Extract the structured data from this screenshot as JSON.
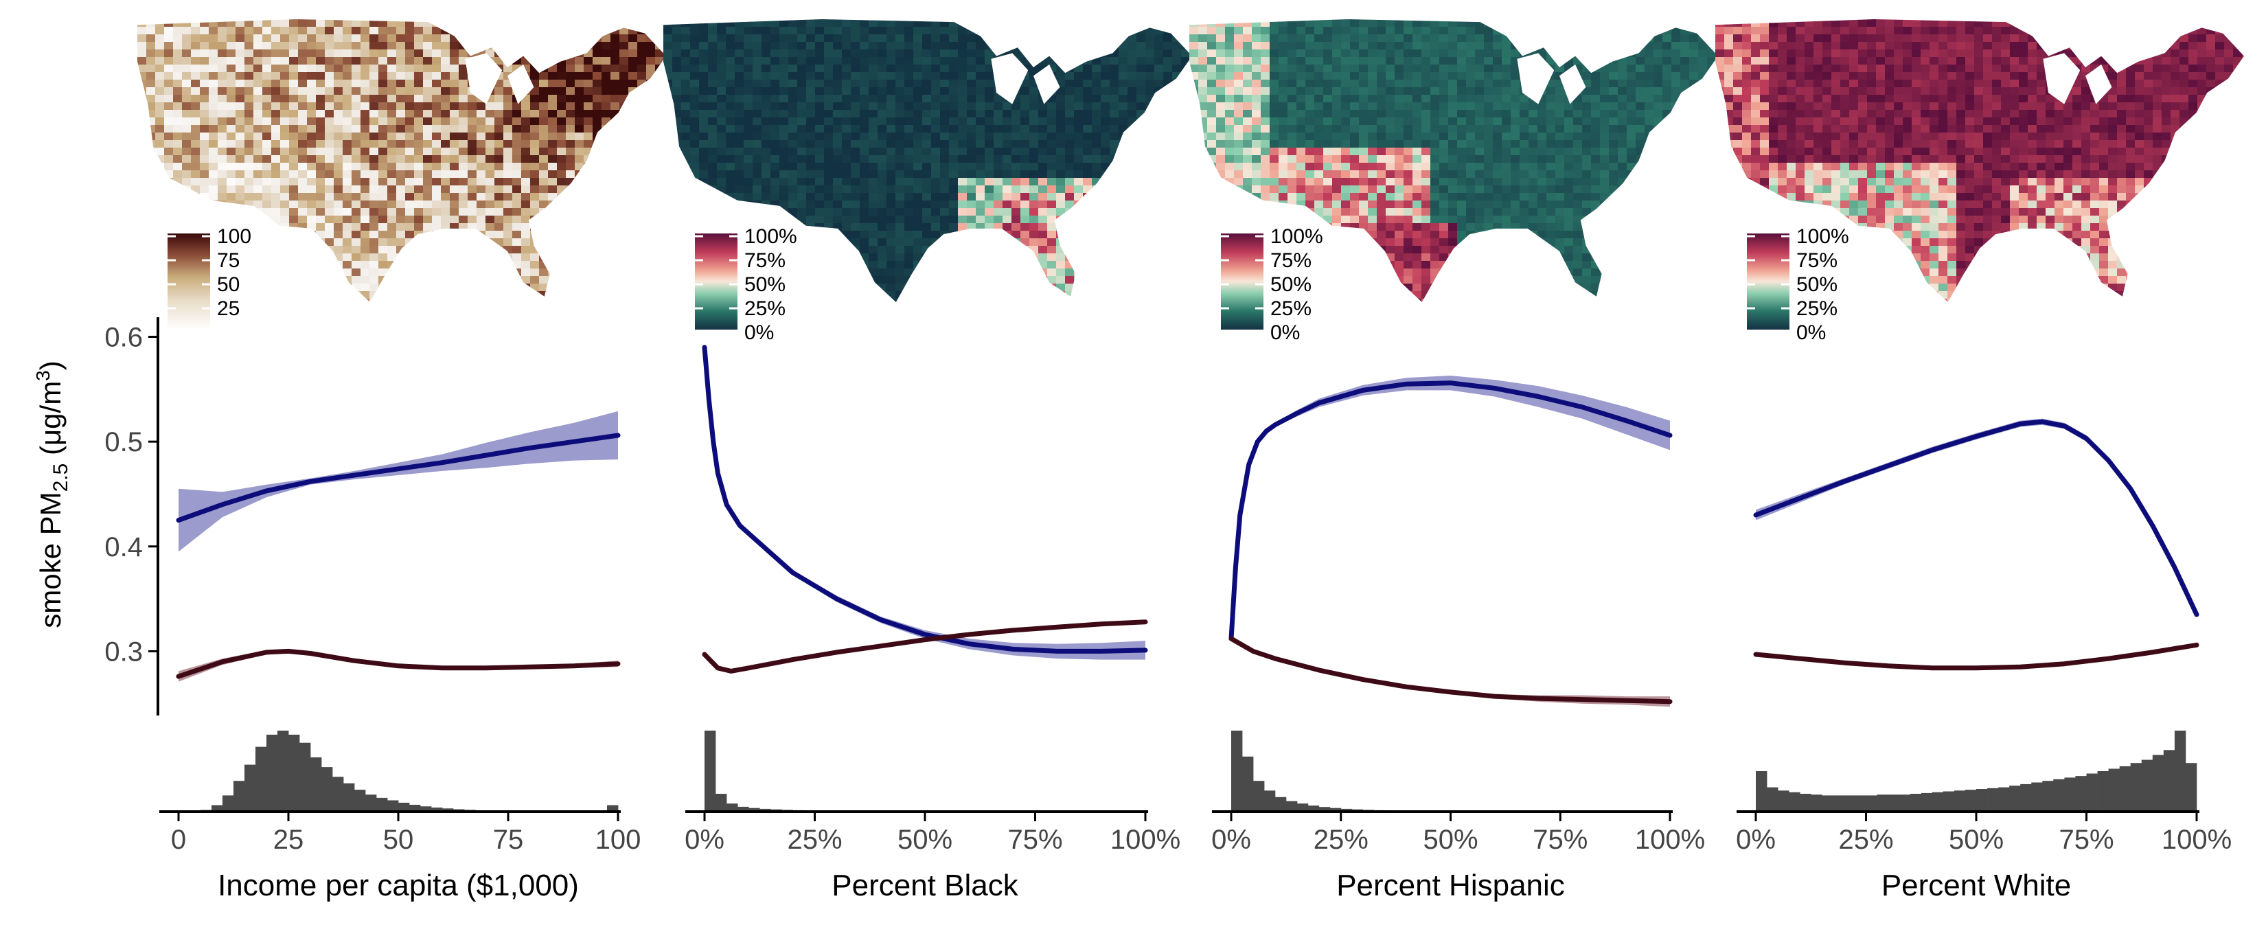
{
  "figure": {
    "ylabel_main": "smoke PM",
    "ylabel_sub": "2.5",
    "ylabel_unit_prefix": " (μg/m",
    "ylabel_unit_sup": "3",
    "ylabel_unit_suffix": ")"
  },
  "colors": {
    "navy": "#0c0c7a",
    "navy_band": "#8a8ac6",
    "maroon": "#3e0a15",
    "maroon_band": "#b0848c",
    "hist_fill": "#4a4a4a",
    "axis": "#000000",
    "sea_dark": "#123142",
    "sea_teal": "#2d7a6b",
    "sea_mint": "#8fd0b0",
    "sea_cream": "#f6e7d8",
    "sea_salmon": "#f0a090",
    "sea_rose": "#c03d5a",
    "sea_plum": "#5a0f3c",
    "inc_light": "#efe9e2",
    "inc_tan": "#c9ab7b",
    "inc_brown": "#8a4a36",
    "inc_dark": "#3a0b0b"
  },
  "chart_data": [
    {
      "type": "line",
      "panel": "income",
      "xlabel": "Income per capita ($1,000)",
      "xlim": [
        0,
        100
      ],
      "xticks": [
        0,
        25,
        50,
        75,
        100
      ],
      "xtick_labels": [
        "0",
        "25",
        "50",
        "75",
        "100"
      ],
      "ylim": [
        0.24,
        0.62
      ],
      "yticks": [
        0.3,
        0.4,
        0.5,
        0.6
      ],
      "ytick_labels": [
        "0.3",
        "0.4",
        "0.5",
        "0.6"
      ],
      "map_legend": {
        "labels": [
          "100",
          "75",
          "50",
          "25"
        ],
        "scale": "income"
      },
      "series": [
        {
          "color": "navy",
          "x": [
            0,
            10,
            20,
            30,
            40,
            50,
            60,
            70,
            80,
            90,
            100
          ],
          "y": [
            0.425,
            0.44,
            0.453,
            0.462,
            0.468,
            0.474,
            0.48,
            0.487,
            0.494,
            0.5,
            0.506
          ],
          "lower": [
            0.395,
            0.428,
            0.447,
            0.459,
            0.464,
            0.468,
            0.472,
            0.475,
            0.479,
            0.482,
            0.483
          ],
          "upper": [
            0.455,
            0.452,
            0.459,
            0.465,
            0.472,
            0.48,
            0.488,
            0.499,
            0.509,
            0.518,
            0.529
          ]
        },
        {
          "color": "maroon",
          "x": [
            0,
            10,
            20,
            25,
            30,
            40,
            50,
            60,
            70,
            80,
            90,
            100
          ],
          "y": [
            0.276,
            0.29,
            0.299,
            0.3,
            0.298,
            0.291,
            0.286,
            0.284,
            0.284,
            0.285,
            0.286,
            0.288
          ],
          "lower": [
            0.271,
            0.287,
            0.297,
            0.298,
            0.296,
            0.289,
            0.284,
            0.282,
            0.282,
            0.283,
            0.284,
            0.285
          ],
          "upper": [
            0.281,
            0.293,
            0.301,
            0.302,
            0.3,
            0.293,
            0.288,
            0.286,
            0.286,
            0.287,
            0.288,
            0.291
          ]
        }
      ],
      "histogram": [
        0.003,
        0.005,
        0.02,
        0.08,
        0.2,
        0.38,
        0.58,
        0.8,
        0.95,
        1.0,
        0.95,
        0.85,
        0.67,
        0.55,
        0.43,
        0.35,
        0.27,
        0.21,
        0.17,
        0.14,
        0.11,
        0.085,
        0.065,
        0.05,
        0.04,
        0.03,
        0.022,
        0.017,
        0.013,
        0.01,
        0.008,
        0.006,
        0.005,
        0.004,
        0.003,
        0.003,
        0.002,
        0.002,
        0.002,
        0.08
      ]
    },
    {
      "type": "line",
      "panel": "black",
      "xlabel": "Percent Black",
      "xlim": [
        0,
        100
      ],
      "xticks": [
        0,
        25,
        50,
        75,
        100
      ],
      "xtick_labels": [
        "0%",
        "25%",
        "50%",
        "75%",
        "100%"
      ],
      "ylim": [
        0.24,
        0.62
      ],
      "map_legend": {
        "labels": [
          "100%",
          "75%",
          "50%",
          "25%",
          "0%"
        ],
        "scale": "diverging"
      },
      "series": [
        {
          "color": "navy",
          "x": [
            0,
            1,
            2,
            3,
            5,
            8,
            12,
            20,
            30,
            40,
            50,
            60,
            70,
            80,
            90,
            100
          ],
          "y": [
            0.59,
            0.54,
            0.5,
            0.47,
            0.44,
            0.42,
            0.405,
            0.375,
            0.35,
            0.33,
            0.316,
            0.307,
            0.302,
            0.3,
            0.3,
            0.301
          ],
          "lower": [
            0.59,
            0.54,
            0.5,
            0.47,
            0.44,
            0.42,
            0.404,
            0.373,
            0.347,
            0.327,
            0.312,
            0.302,
            0.296,
            0.293,
            0.292,
            0.292
          ],
          "upper": [
            0.59,
            0.54,
            0.5,
            0.47,
            0.44,
            0.42,
            0.406,
            0.377,
            0.353,
            0.333,
            0.32,
            0.312,
            0.308,
            0.307,
            0.308,
            0.31
          ]
        },
        {
          "color": "maroon",
          "x": [
            0,
            3,
            6,
            10,
            20,
            30,
            40,
            50,
            60,
            70,
            80,
            90,
            100
          ],
          "y": [
            0.297,
            0.284,
            0.281,
            0.284,
            0.292,
            0.299,
            0.305,
            0.311,
            0.316,
            0.32,
            0.323,
            0.326,
            0.328
          ],
          "lower": [
            0.294,
            0.282,
            0.279,
            0.282,
            0.29,
            0.297,
            0.303,
            0.309,
            0.314,
            0.318,
            0.321,
            0.324,
            0.326
          ],
          "upper": [
            0.3,
            0.286,
            0.283,
            0.286,
            0.294,
            0.301,
            0.307,
            0.313,
            0.318,
            0.322,
            0.325,
            0.328,
            0.33
          ]
        }
      ],
      "histogram": [
        1.0,
        0.22,
        0.1,
        0.06,
        0.045,
        0.035,
        0.028,
        0.022,
        0.018,
        0.015,
        0.012,
        0.01,
        0.008,
        0.007,
        0.006,
        0.005,
        0.004,
        0.004,
        0.003,
        0.003,
        0.002,
        0.002,
        0.002,
        0.002,
        0.001,
        0.001,
        0.001,
        0.001,
        0.001,
        0.001,
        0.001,
        0.001,
        0.001,
        0.001,
        0.001,
        0.001,
        0.001,
        0.001,
        0.001,
        0.001
      ]
    },
    {
      "type": "line",
      "panel": "hispanic",
      "xlabel": "Percent Hispanic",
      "xlim": [
        0,
        100
      ],
      "xticks": [
        0,
        25,
        50,
        75,
        100
      ],
      "xtick_labels": [
        "0%",
        "25%",
        "50%",
        "75%",
        "100%"
      ],
      "ylim": [
        0.24,
        0.62
      ],
      "map_legend": {
        "labels": [
          "100%",
          "75%",
          "50%",
          "25%",
          "0%"
        ],
        "scale": "diverging"
      },
      "series": [
        {
          "color": "navy",
          "x": [
            0,
            1,
            2,
            4,
            6,
            8,
            10,
            15,
            20,
            30,
            40,
            50,
            60,
            70,
            80,
            90,
            100
          ],
          "y": [
            0.312,
            0.38,
            0.43,
            0.478,
            0.5,
            0.51,
            0.516,
            0.527,
            0.537,
            0.549,
            0.555,
            0.556,
            0.551,
            0.543,
            0.533,
            0.52,
            0.506
          ],
          "lower": [
            0.312,
            0.38,
            0.43,
            0.478,
            0.5,
            0.51,
            0.514,
            0.524,
            0.533,
            0.544,
            0.549,
            0.549,
            0.543,
            0.533,
            0.522,
            0.507,
            0.492
          ],
          "upper": [
            0.312,
            0.38,
            0.43,
            0.478,
            0.5,
            0.51,
            0.518,
            0.53,
            0.541,
            0.554,
            0.561,
            0.563,
            0.559,
            0.553,
            0.544,
            0.533,
            0.52
          ]
        },
        {
          "color": "maroon",
          "x": [
            0,
            5,
            10,
            20,
            30,
            40,
            50,
            60,
            70,
            80,
            90,
            100
          ],
          "y": [
            0.312,
            0.3,
            0.293,
            0.282,
            0.273,
            0.266,
            0.261,
            0.257,
            0.255,
            0.254,
            0.253,
            0.252
          ],
          "lower": [
            0.31,
            0.298,
            0.291,
            0.28,
            0.271,
            0.264,
            0.259,
            0.255,
            0.252,
            0.25,
            0.249,
            0.247
          ],
          "upper": [
            0.314,
            0.302,
            0.295,
            0.284,
            0.275,
            0.268,
            0.263,
            0.259,
            0.258,
            0.258,
            0.257,
            0.257
          ]
        }
      ],
      "histogram": [
        1.0,
        0.68,
        0.38,
        0.26,
        0.18,
        0.13,
        0.1,
        0.075,
        0.058,
        0.045,
        0.035,
        0.028,
        0.022,
        0.018,
        0.014,
        0.011,
        0.009,
        0.008,
        0.007,
        0.006,
        0.005,
        0.005,
        0.004,
        0.004,
        0.003,
        0.003,
        0.003,
        0.002,
        0.002,
        0.002,
        0.002,
        0.002,
        0.001,
        0.001,
        0.001,
        0.001,
        0.001,
        0.001,
        0.001,
        0.001
      ]
    },
    {
      "type": "line",
      "panel": "white",
      "xlabel": "Percent White",
      "xlim": [
        0,
        100
      ],
      "xticks": [
        0,
        25,
        50,
        75,
        100
      ],
      "xtick_labels": [
        "0%",
        "25%",
        "50%",
        "75%",
        "100%"
      ],
      "ylim": [
        0.24,
        0.62
      ],
      "map_legend": {
        "labels": [
          "100%",
          "75%",
          "50%",
          "25%",
          "0%"
        ],
        "scale": "diverging"
      },
      "series": [
        {
          "color": "navy",
          "x": [
            0,
            10,
            20,
            30,
            40,
            50,
            55,
            60,
            65,
            70,
            75,
            80,
            85,
            90,
            95,
            100
          ],
          "y": [
            0.43,
            0.446,
            0.462,
            0.477,
            0.492,
            0.505,
            0.511,
            0.517,
            0.519,
            0.515,
            0.503,
            0.482,
            0.455,
            0.42,
            0.38,
            0.335
          ],
          "lower": [
            0.425,
            0.442,
            0.459,
            0.474,
            0.489,
            0.502,
            0.508,
            0.514,
            0.516,
            0.512,
            0.5,
            0.479,
            0.452,
            0.418,
            0.378,
            0.333
          ],
          "upper": [
            0.435,
            0.45,
            0.465,
            0.48,
            0.495,
            0.508,
            0.514,
            0.52,
            0.522,
            0.518,
            0.506,
            0.485,
            0.458,
            0.422,
            0.382,
            0.337
          ]
        },
        {
          "color": "maroon",
          "x": [
            0,
            10,
            20,
            30,
            40,
            50,
            60,
            70,
            80,
            90,
            100
          ],
          "y": [
            0.297,
            0.293,
            0.289,
            0.286,
            0.284,
            0.284,
            0.285,
            0.288,
            0.293,
            0.299,
            0.306
          ],
          "lower": [
            0.295,
            0.291,
            0.287,
            0.284,
            0.282,
            0.282,
            0.283,
            0.286,
            0.291,
            0.297,
            0.304
          ],
          "upper": [
            0.299,
            0.295,
            0.291,
            0.288,
            0.286,
            0.286,
            0.287,
            0.29,
            0.295,
            0.301,
            0.308
          ]
        }
      ],
      "histogram": [
        0.5,
        0.3,
        0.26,
        0.24,
        0.22,
        0.21,
        0.2,
        0.2,
        0.2,
        0.2,
        0.2,
        0.21,
        0.21,
        0.21,
        0.22,
        0.23,
        0.24,
        0.25,
        0.26,
        0.27,
        0.28,
        0.29,
        0.3,
        0.32,
        0.34,
        0.36,
        0.38,
        0.4,
        0.42,
        0.44,
        0.47,
        0.5,
        0.53,
        0.56,
        0.6,
        0.64,
        0.7,
        0.76,
        1.0,
        0.6
      ]
    }
  ]
}
